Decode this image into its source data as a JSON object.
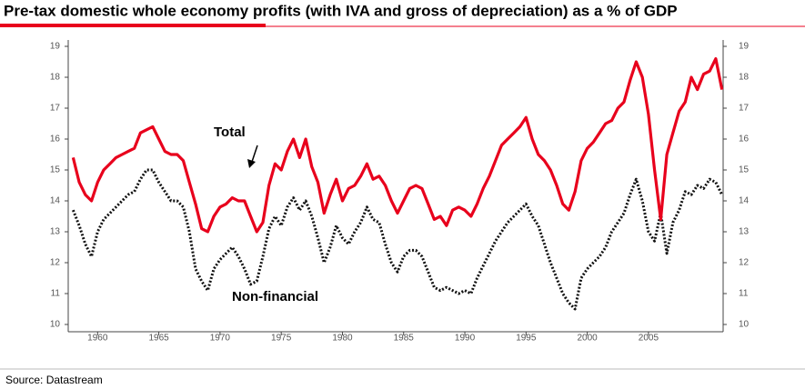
{
  "chart_data": {
    "type": "line",
    "title": "Pre-tax domestic whole economy profits (with IVA and gross of depreciation) as a % of GDP",
    "source": "Source: Datastream",
    "annotations": [
      "Total",
      "Non-financial"
    ],
    "x": [
      1958,
      1958.5,
      1959,
      1959.5,
      1960,
      1960.5,
      1961,
      1961.5,
      1962,
      1962.5,
      1963,
      1963.5,
      1964,
      1964.5,
      1965,
      1965.5,
      1966,
      1966.5,
      1967,
      1967.5,
      1968,
      1968.5,
      1969,
      1969.5,
      1970,
      1970.5,
      1971,
      1971.5,
      1972,
      1972.5,
      1973,
      1973.5,
      1974,
      1974.5,
      1975,
      1975.5,
      1976,
      1976.5,
      1977,
      1977.5,
      1978,
      1978.5,
      1979,
      1979.5,
      1980,
      1980.5,
      1981,
      1981.5,
      1982,
      1982.5,
      1983,
      1983.5,
      1984,
      1984.5,
      1985,
      1985.5,
      1986,
      1986.5,
      1987,
      1987.5,
      1988,
      1988.5,
      1989,
      1989.5,
      1990,
      1990.5,
      1991,
      1991.5,
      1992,
      1992.5,
      1993,
      1993.5,
      1994,
      1994.5,
      1995,
      1995.5,
      1996,
      1996.5,
      1997,
      1997.5,
      1998,
      1998.5,
      1999,
      1999.5,
      2000,
      2000.5,
      2001,
      2001.5,
      2002,
      2002.5,
      2003,
      2003.5,
      2004,
      2004.5,
      2005,
      2005.5,
      2006,
      2006.5,
      2007,
      2007.5,
      2008,
      2008.5,
      2009,
      2009.5,
      2010,
      2010.5,
      2011
    ],
    "series": [
      {
        "name": "Total",
        "color": "#e8001c",
        "style": "solid",
        "values": [
          15.4,
          14.6,
          14.2,
          14.0,
          14.6,
          15.0,
          15.2,
          15.4,
          15.5,
          15.6,
          15.7,
          16.2,
          16.3,
          16.4,
          16.0,
          15.6,
          15.5,
          15.5,
          15.3,
          14.6,
          13.9,
          13.1,
          13.0,
          13.5,
          13.8,
          13.9,
          14.1,
          14.0,
          14.0,
          13.5,
          13.0,
          13.3,
          14.5,
          15.2,
          15.0,
          15.6,
          16.0,
          15.4,
          16.0,
          15.1,
          14.6,
          13.6,
          14.2,
          14.7,
          14.0,
          14.4,
          14.5,
          14.8,
          15.2,
          14.7,
          14.8,
          14.5,
          14.0,
          13.6,
          14.0,
          14.4,
          14.5,
          14.4,
          13.9,
          13.4,
          13.5,
          13.2,
          13.7,
          13.8,
          13.7,
          13.5,
          13.9,
          14.4,
          14.8,
          15.3,
          15.8,
          16.0,
          16.2,
          16.4,
          16.7,
          16.0,
          15.5,
          15.3,
          15.0,
          14.5,
          13.9,
          13.7,
          14.3,
          15.3,
          15.7,
          15.9,
          16.2,
          16.5,
          16.6,
          17.0,
          17.2,
          17.9,
          18.5,
          18.0,
          16.8,
          15.0,
          13.4,
          15.5,
          16.2,
          16.9,
          17.2,
          18.0,
          17.6,
          18.1,
          18.2,
          18.6,
          17.6
        ]
      },
      {
        "name": "Non-financial",
        "color": "#111111",
        "style": "dotted",
        "values": [
          13.7,
          13.2,
          12.6,
          12.2,
          13.0,
          13.4,
          13.6,
          13.8,
          14.0,
          14.2,
          14.3,
          14.7,
          15.0,
          15.0,
          14.6,
          14.3,
          14.0,
          14.0,
          13.8,
          13.0,
          11.8,
          11.4,
          11.1,
          11.8,
          12.1,
          12.3,
          12.5,
          12.2,
          11.8,
          11.3,
          11.4,
          12.2,
          13.1,
          13.5,
          13.2,
          13.8,
          14.1,
          13.7,
          14.0,
          13.5,
          12.8,
          12.0,
          12.5,
          13.2,
          12.8,
          12.6,
          13.0,
          13.3,
          13.8,
          13.4,
          13.3,
          12.6,
          12.0,
          11.7,
          12.2,
          12.4,
          12.4,
          12.2,
          11.7,
          11.2,
          11.1,
          11.2,
          11.1,
          11.0,
          11.1,
          11.0,
          11.5,
          11.9,
          12.3,
          12.7,
          13.0,
          13.3,
          13.5,
          13.7,
          13.9,
          13.5,
          13.2,
          12.6,
          12.0,
          11.5,
          11.0,
          10.7,
          10.5,
          11.5,
          11.8,
          12.0,
          12.2,
          12.5,
          13.0,
          13.3,
          13.6,
          14.2,
          14.7,
          14.0,
          13.0,
          12.7,
          13.6,
          12.3,
          13.3,
          13.7,
          14.3,
          14.2,
          14.5,
          14.4,
          14.7,
          14.6,
          14.2
        ]
      }
    ],
    "xlim": [
      1957.6,
      2011.1
    ],
    "xticks": [
      1960,
      1965,
      1970,
      1975,
      1980,
      1985,
      1990,
      1995,
      2000,
      2005
    ],
    "ylim": [
      10,
      19
    ],
    "yticks": [
      10,
      11,
      12,
      13,
      14,
      15,
      16,
      17,
      18,
      19
    ],
    "y2lim": [
      10,
      19
    ],
    "y2ticks": [
      10,
      11,
      12,
      13,
      14,
      15,
      16,
      17,
      18,
      19
    ],
    "grid": false
  }
}
